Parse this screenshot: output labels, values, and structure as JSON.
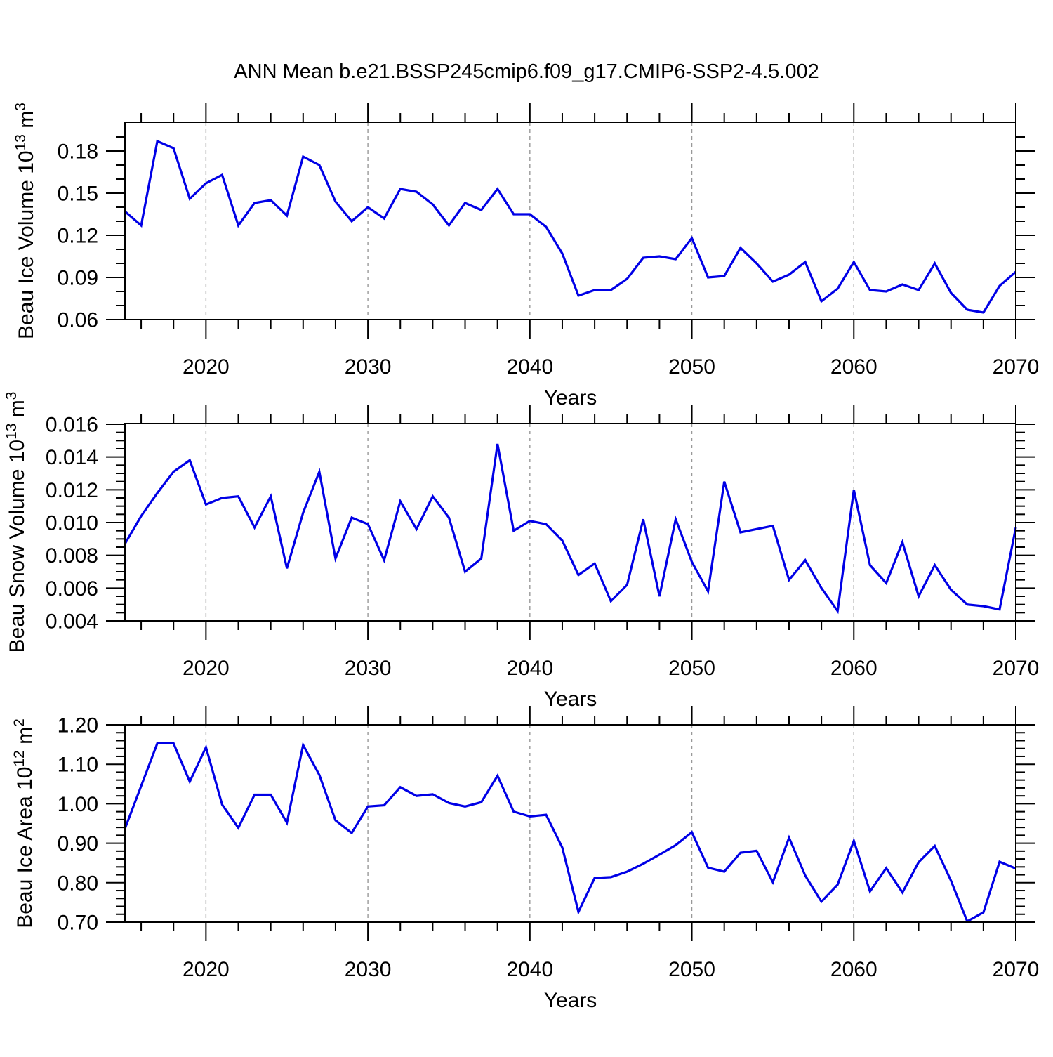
{
  "title": "ANN Mean b.e21.BSSP245cmip6.f09_g17.CMIP6-SSP2-4.5.002",
  "colors": {
    "line": "#0000e6",
    "grid": "#999999",
    "frame": "#000000",
    "text": "#000000",
    "background": "#ffffff"
  },
  "chart_data": {
    "type": "line",
    "title": "ANN Mean b.e21.BSSP245cmip6.f09_g17.CMIP6-SSP2-4.5.002",
    "xlabel": "Years",
    "xlim": [
      2015,
      2070
    ],
    "x_major_ticks": [
      2020,
      2030,
      2040,
      2050,
      2060,
      2070
    ],
    "x_minor_step": 2,
    "gridline_years": [
      2020,
      2030,
      2040,
      2050,
      2060
    ],
    "grid_style": "dashed-vertical",
    "legend": "none",
    "x": [
      2015,
      2016,
      2017,
      2018,
      2019,
      2020,
      2021,
      2022,
      2023,
      2024,
      2025,
      2026,
      2027,
      2028,
      2029,
      2030,
      2031,
      2032,
      2033,
      2034,
      2035,
      2036,
      2037,
      2038,
      2039,
      2040,
      2041,
      2042,
      2043,
      2044,
      2045,
      2046,
      2047,
      2048,
      2049,
      2050,
      2051,
      2052,
      2053,
      2054,
      2055,
      2056,
      2057,
      2058,
      2059,
      2060,
      2061,
      2062,
      2063,
      2064,
      2065,
      2066,
      2067,
      2068,
      2069,
      2070
    ],
    "panels": [
      {
        "name": "ice-volume",
        "ylabel": "Beau Ice Volume 10^13 m^3",
        "ylabel_parts": [
          {
            "text": "Beau Ice Volume 10",
            "sup": false
          },
          {
            "text": "13",
            "sup": true
          },
          {
            "text": " m",
            "sup": false
          },
          {
            "text": "3",
            "sup": true
          }
        ],
        "ylim": [
          0.06,
          0.2005
        ],
        "ytick_values": [
          0.06,
          0.09,
          0.12,
          0.15,
          0.18
        ],
        "ytick_labels": [
          "0.06",
          "0.09",
          "0.12",
          "0.15",
          "0.18"
        ],
        "y_minor_step": 0.01,
        "values": [
          0.137,
          0.127,
          0.187,
          0.182,
          0.146,
          0.157,
          0.163,
          0.127,
          0.143,
          0.145,
          0.134,
          0.176,
          0.17,
          0.144,
          0.13,
          0.14,
          0.132,
          0.153,
          0.151,
          0.142,
          0.127,
          0.143,
          0.138,
          0.153,
          0.135,
          0.135,
          0.126,
          0.107,
          0.077,
          0.081,
          0.081,
          0.089,
          0.104,
          0.105,
          0.103,
          0.118,
          0.09,
          0.091,
          0.111,
          0.1,
          0.087,
          0.092,
          0.101,
          0.073,
          0.082,
          0.101,
          0.081,
          0.08,
          0.085,
          0.081,
          0.1,
          0.079,
          0.067,
          0.065,
          0.084,
          0.094
        ]
      },
      {
        "name": "snow-volume",
        "ylabel": "Beau Snow Volume 10^13 m^3",
        "ylabel_parts": [
          {
            "text": "Beau Snow Volume 10",
            "sup": false
          },
          {
            "text": "13",
            "sup": true
          },
          {
            "text": " m",
            "sup": false
          },
          {
            "text": "3",
            "sup": true
          }
        ],
        "ylim": [
          0.004,
          0.016043
        ],
        "ytick_values": [
          0.004,
          0.006,
          0.008,
          0.01,
          0.012,
          0.014,
          0.016
        ],
        "ytick_labels": [
          "0.004",
          "0.006",
          "0.008",
          "0.010",
          "0.012",
          "0.014",
          "0.016"
        ],
        "y_minor_step": 0.0005,
        "values": [
          0.0087,
          0.0104,
          0.0118,
          0.0131,
          0.0138,
          0.0111,
          0.0115,
          0.0116,
          0.0097,
          0.0116,
          0.0072,
          0.0106,
          0.0131,
          0.0078,
          0.0103,
          0.0099,
          0.0077,
          0.0113,
          0.0096,
          0.0116,
          0.0103,
          0.007,
          0.0078,
          0.0148,
          0.0095,
          0.0101,
          0.0099,
          0.0089,
          0.0068,
          0.0075,
          0.0052,
          0.0062,
          0.0102,
          0.0055,
          0.0102,
          0.0076,
          0.0058,
          0.0125,
          0.0094,
          0.0096,
          0.0098,
          0.0065,
          0.0077,
          0.006,
          0.0046,
          0.012,
          0.0074,
          0.0063,
          0.0088,
          0.0055,
          0.0074,
          0.0059,
          0.005,
          0.0049,
          0.0047,
          0.0097
        ]
      },
      {
        "name": "ice-area",
        "ylabel": "Beau Ice Area 10^12 m^2",
        "ylabel_parts": [
          {
            "text": "Beau Ice Area 10",
            "sup": false
          },
          {
            "text": "12",
            "sup": true
          },
          {
            "text": " m",
            "sup": false
          },
          {
            "text": "2",
            "sup": true
          }
        ],
        "ylim": [
          0.7,
          1.2
        ],
        "ytick_values": [
          0.7,
          0.8,
          0.9,
          1.0,
          1.1,
          1.2
        ],
        "ytick_labels": [
          "0.70",
          "0.80",
          "0.90",
          "1.00",
          "1.10",
          "1.20"
        ],
        "y_minor_step": 0.02,
        "values": [
          0.937,
          1.045,
          1.153,
          1.153,
          1.056,
          1.143,
          0.998,
          0.939,
          1.023,
          1.023,
          0.952,
          1.149,
          1.073,
          0.958,
          0.926,
          0.993,
          0.996,
          1.042,
          1.02,
          1.024,
          1.002,
          0.993,
          1.004,
          1.071,
          0.98,
          0.968,
          0.972,
          0.889,
          0.726,
          0.812,
          0.814,
          0.828,
          0.848,
          0.871,
          0.895,
          0.928,
          0.838,
          0.828,
          0.876,
          0.881,
          0.801,
          0.914,
          0.818,
          0.752,
          0.795,
          0.906,
          0.778,
          0.837,
          0.775,
          0.852,
          0.893,
          0.805,
          0.702,
          0.725,
          0.853,
          0.836
        ]
      }
    ]
  }
}
